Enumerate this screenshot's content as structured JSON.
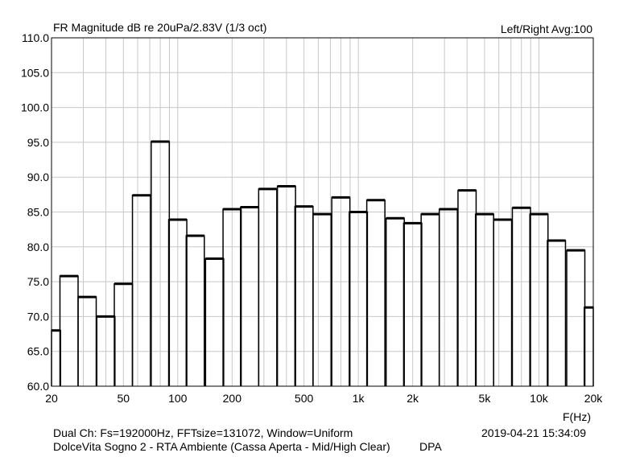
{
  "header": {
    "title": "FR Magnitude dB re 20uPa/2.83V (1/3 oct)",
    "channel_info": "Left/Right  Avg:100"
  },
  "footer": {
    "line1": "Dual Ch: Fs=192000Hz, FFTsize=131072, Window=Uniform",
    "line2": "DolceVita Sogno 2 - RTA Ambiente (Cassa Aperta - Mid/High Clear)",
    "tag": "DPA",
    "timestamp": "2019-04-21  15:34:09"
  },
  "chart_data": {
    "type": "bar",
    "title": "FR Magnitude dB re 20uPa/2.83V (1/3 oct)",
    "xlabel": "F(Hz)",
    "ylabel": "",
    "x_scale": "log",
    "xlim": [
      20,
      20000
    ],
    "ylim": [
      60,
      110
    ],
    "grid": true,
    "line_color": "#000000",
    "grid_color": "#c8c8c8",
    "y_ticks": [
      {
        "v": 60,
        "label": "60.0"
      },
      {
        "v": 65,
        "label": "65.0"
      },
      {
        "v": 70,
        "label": "70.0"
      },
      {
        "v": 75,
        "label": "75.0"
      },
      {
        "v": 80,
        "label": "80.0"
      },
      {
        "v": 85,
        "label": "85.0"
      },
      {
        "v": 90,
        "label": "90.0"
      },
      {
        "v": 95,
        "label": "95.0"
      },
      {
        "v": 100,
        "label": "100.0"
      },
      {
        "v": 105,
        "label": "105.0"
      },
      {
        "v": 110,
        "label": "110.0"
      }
    ],
    "x_ticks": [
      {
        "v": 20,
        "label": "20"
      },
      {
        "v": 50,
        "label": "50"
      },
      {
        "v": 100,
        "label": "100"
      },
      {
        "v": 200,
        "label": "200"
      },
      {
        "v": 500,
        "label": "500"
      },
      {
        "v": 1000,
        "label": "1k"
      },
      {
        "v": 2000,
        "label": "2k"
      },
      {
        "v": 5000,
        "label": "5k"
      },
      {
        "v": 10000,
        "label": "10k"
      },
      {
        "v": 20000,
        "label": "20k"
      }
    ],
    "x": [
      20,
      25,
      31.5,
      40,
      50,
      63,
      80,
      100,
      125,
      160,
      200,
      250,
      315,
      400,
      500,
      630,
      800,
      1000,
      1250,
      1600,
      2000,
      2500,
      3150,
      4000,
      5000,
      6300,
      8000,
      10000,
      12500,
      16000,
      20000
    ],
    "values": [
      68.0,
      75.8,
      72.8,
      70.0,
      74.7,
      87.4,
      95.1,
      83.9,
      81.6,
      78.3,
      85.4,
      85.7,
      88.3,
      88.7,
      85.8,
      84.7,
      87.1,
      85.0,
      86.7,
      84.1,
      83.4,
      84.7,
      85.4,
      88.1,
      84.7,
      83.9,
      85.6,
      84.7,
      80.9,
      79.5,
      71.3
    ]
  }
}
